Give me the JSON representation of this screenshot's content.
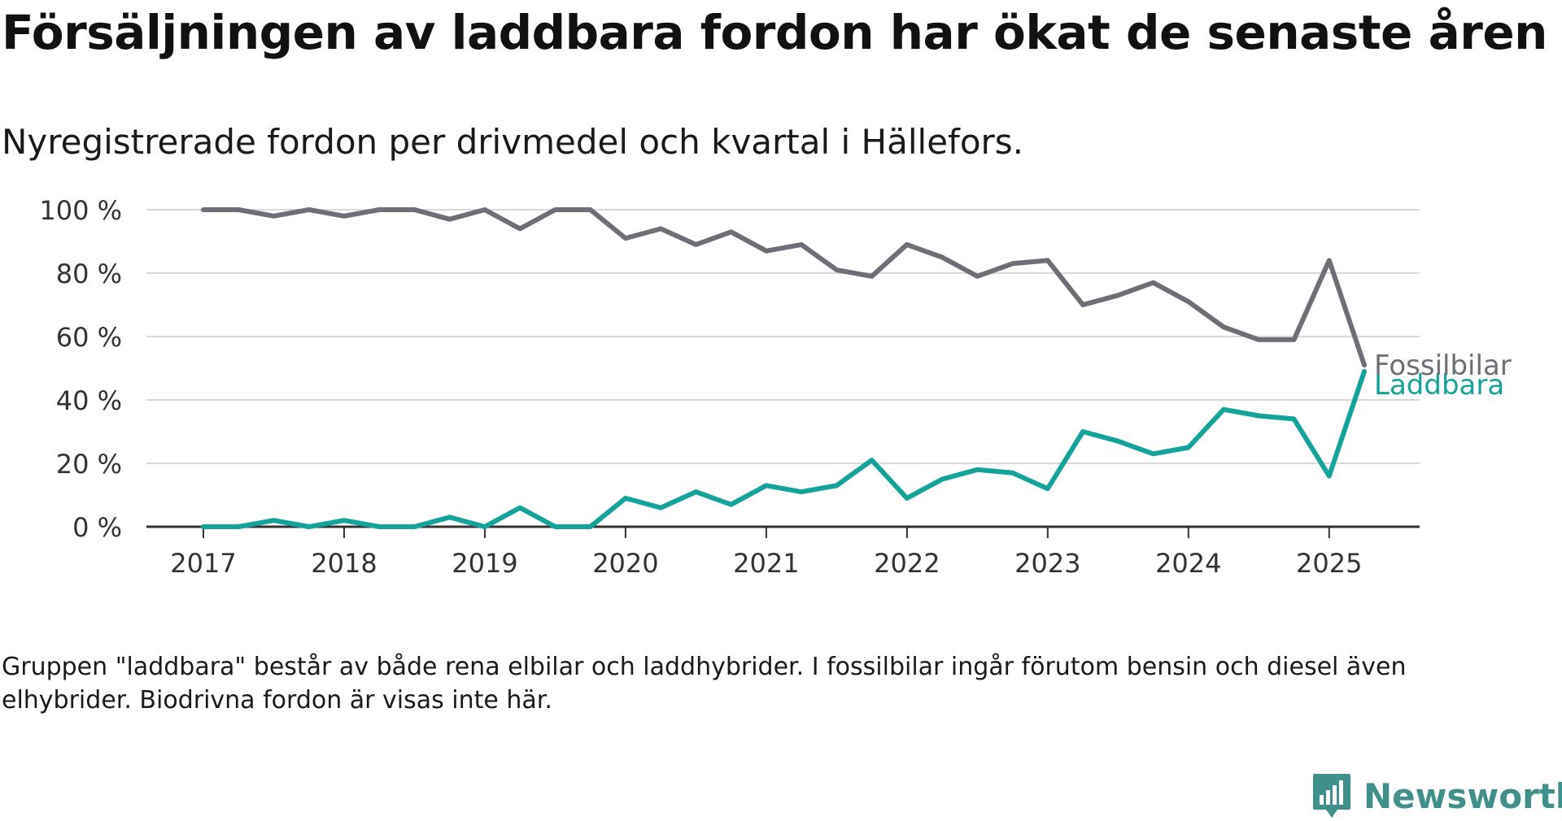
{
  "title": "Försäljningen av laddbara fordon har ökat de senaste åren",
  "subtitle": "Nyregistrerade fordon per drivmedel och kvartal i Hällefors.",
  "footnote": "Gruppen \"laddbara\" består av både rena elbilar och laddhybrider. I fossilbilar ingår förutom bensin och diesel även elhybrider. Biodrivna fordon är visas inte här.",
  "brand": {
    "name": "Newsworthy",
    "icon": "newsworthy-logo-icon",
    "color": "#3f8f8a"
  },
  "chart_data": {
    "type": "line",
    "title": "",
    "xlabel": "",
    "ylabel": "",
    "ylim": [
      0,
      100
    ],
    "xlim": [
      2017,
      2025.25
    ],
    "yticks": [
      0,
      20,
      40,
      60,
      80,
      100
    ],
    "ytick_labels": [
      "0 %",
      "20 %",
      "40 %",
      "60 %",
      "80 %",
      "100 %"
    ],
    "xticks": [
      2017,
      2018,
      2019,
      2020,
      2021,
      2022,
      2023,
      2024,
      2025
    ],
    "xtick_labels": [
      "2017",
      "2018",
      "2019",
      "2020",
      "2021",
      "2022",
      "2023",
      "2024",
      "2025"
    ],
    "grid": "horizontal",
    "legend": "direct labels at line ends",
    "x": [
      2017,
      2017.25,
      2017.5,
      2017.75,
      2018,
      2018.25,
      2018.5,
      2018.75,
      2019,
      2019.25,
      2019.5,
      2019.75,
      2020,
      2020.25,
      2020.5,
      2020.75,
      2021,
      2021.25,
      2021.5,
      2021.75,
      2022,
      2022.25,
      2022.5,
      2022.75,
      2023,
      2023.25,
      2023.5,
      2023.75,
      2024,
      2024.25,
      2024.5,
      2024.75,
      2025,
      2025.25
    ],
    "series": [
      {
        "name": "Fossilbilar",
        "color": "#6e6e76",
        "values": [
          100,
          100,
          98,
          100,
          98,
          100,
          100,
          97,
          100,
          94,
          100,
          100,
          91,
          94,
          89,
          93,
          87,
          89,
          81,
          79,
          89,
          85,
          79,
          83,
          84,
          70,
          73,
          77,
          71,
          63,
          59,
          59,
          84,
          51
        ]
      },
      {
        "name": "Laddbara",
        "color": "#14a39a",
        "values": [
          0,
          0,
          2,
          0,
          2,
          0,
          0,
          3,
          0,
          6,
          0,
          0,
          9,
          6,
          11,
          7,
          13,
          11,
          13,
          21,
          9,
          15,
          18,
          17,
          12,
          30,
          27,
          23,
          25,
          37,
          35,
          34,
          16,
          49
        ]
      }
    ]
  }
}
